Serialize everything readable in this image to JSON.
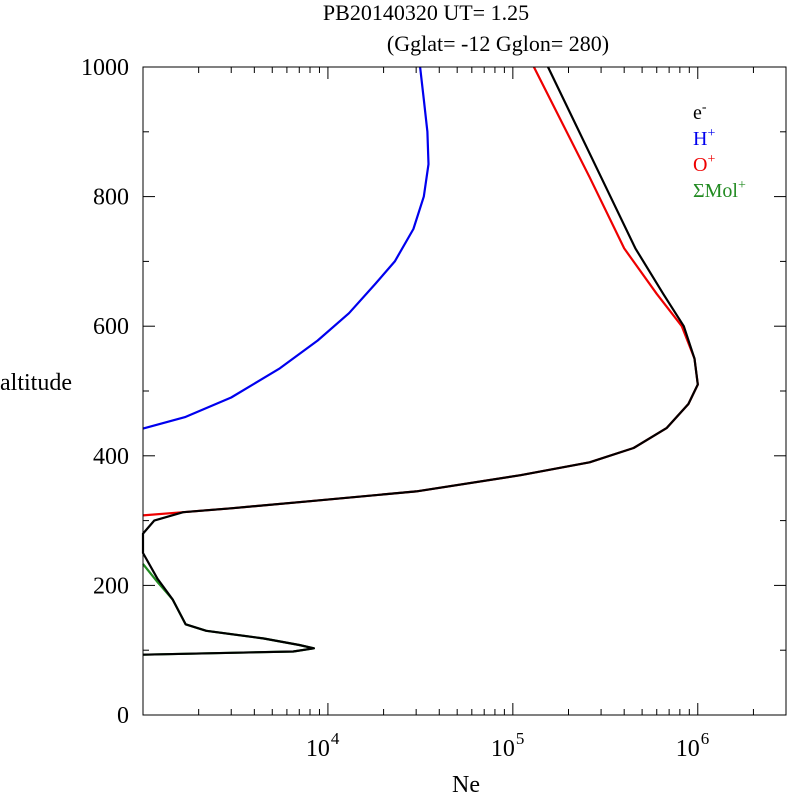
{
  "chart_data": {
    "type": "line",
    "title": "PB20140320   UT=  1.25",
    "subtitle": "(Gglat= -12   Gglon=  280)",
    "xlabel": "Ne",
    "ylabel": "altitude",
    "x_scale": "log",
    "xlim": [
      1000,
      3000000
    ],
    "ylim": [
      0,
      1000
    ],
    "x_ticks": [
      {
        "value": 10000,
        "base": "10",
        "exp": "4"
      },
      {
        "value": 100000,
        "base": "10",
        "exp": "5"
      },
      {
        "value": 1000000,
        "base": "10",
        "exp": "6"
      }
    ],
    "y_ticks": [
      {
        "value": 0,
        "label": "0"
      },
      {
        "value": 200,
        "label": "200"
      },
      {
        "value": 400,
        "label": "400"
      },
      {
        "value": 600,
        "label": "600"
      },
      {
        "value": 800,
        "label": "800"
      },
      {
        "value": 1000,
        "label": "1000"
      }
    ],
    "grid": false,
    "legend_position": "top-right",
    "series": [
      {
        "name": "ΣMol⁺",
        "legend_base": "ΣMol",
        "legend_sup": "+",
        "color": "#228B22",
        "points": [
          [
            1000,
            233
          ],
          [
            1200,
            205
          ],
          [
            1450,
            178
          ],
          [
            1700,
            140
          ],
          [
            2200,
            130
          ],
          [
            4500,
            118
          ],
          [
            7000,
            108
          ],
          [
            8400,
            103
          ],
          [
            6500,
            98
          ],
          [
            1000,
            93
          ]
        ]
      },
      {
        "name": "O⁺",
        "legend_base": "O",
        "legend_sup": "+",
        "color": "#ee0000",
        "points": [
          [
            1000,
            308
          ],
          [
            1650,
            313
          ],
          [
            3000,
            319
          ],
          [
            8000,
            330
          ],
          [
            30000,
            345
          ],
          [
            110000,
            370
          ],
          [
            260000,
            390
          ],
          [
            450000,
            412
          ],
          [
            680000,
            443
          ],
          [
            890000,
            480
          ],
          [
            1000000,
            510
          ],
          [
            960000,
            550
          ],
          [
            820000,
            600
          ],
          [
            600000,
            650
          ],
          [
            400000,
            720
          ],
          [
            260000,
            830
          ],
          [
            130000,
            1000
          ]
        ]
      },
      {
        "name": "H⁺",
        "legend_base": "H",
        "legend_sup": "+",
        "color": "#0000ee",
        "points": [
          [
            1000,
            442
          ],
          [
            1700,
            460
          ],
          [
            3000,
            490
          ],
          [
            5500,
            535
          ],
          [
            8800,
            578
          ],
          [
            13000,
            620
          ],
          [
            18000,
            665
          ],
          [
            23000,
            700
          ],
          [
            29000,
            750
          ],
          [
            33000,
            800
          ],
          [
            35000,
            850
          ],
          [
            34500,
            900
          ],
          [
            33000,
            950
          ],
          [
            31500,
            1000
          ]
        ]
      },
      {
        "name": "e⁻",
        "legend_base": "e",
        "legend_sup": "-",
        "color": "#000000",
        "points": [
          [
            1000,
            93
          ],
          [
            6500,
            98
          ],
          [
            8400,
            103
          ],
          [
            7000,
            108
          ],
          [
            4500,
            118
          ],
          [
            2200,
            130
          ],
          [
            1700,
            140
          ],
          [
            1450,
            178
          ],
          [
            1200,
            210
          ],
          [
            1000,
            250
          ],
          [
            1000,
            280
          ],
          [
            1150,
            300
          ],
          [
            1650,
            313
          ],
          [
            3000,
            319
          ],
          [
            8000,
            330
          ],
          [
            30000,
            345
          ],
          [
            110000,
            370
          ],
          [
            260000,
            390
          ],
          [
            450000,
            412
          ],
          [
            680000,
            443
          ],
          [
            890000,
            480
          ],
          [
            1000000,
            510
          ],
          [
            960000,
            550
          ],
          [
            840000,
            600
          ],
          [
            650000,
            650
          ],
          [
            460000,
            720
          ],
          [
            300000,
            830
          ],
          [
            155000,
            1000
          ]
        ]
      }
    ],
    "legend_order": [
      "e⁻",
      "H⁺",
      "O⁺",
      "ΣMol⁺"
    ]
  }
}
